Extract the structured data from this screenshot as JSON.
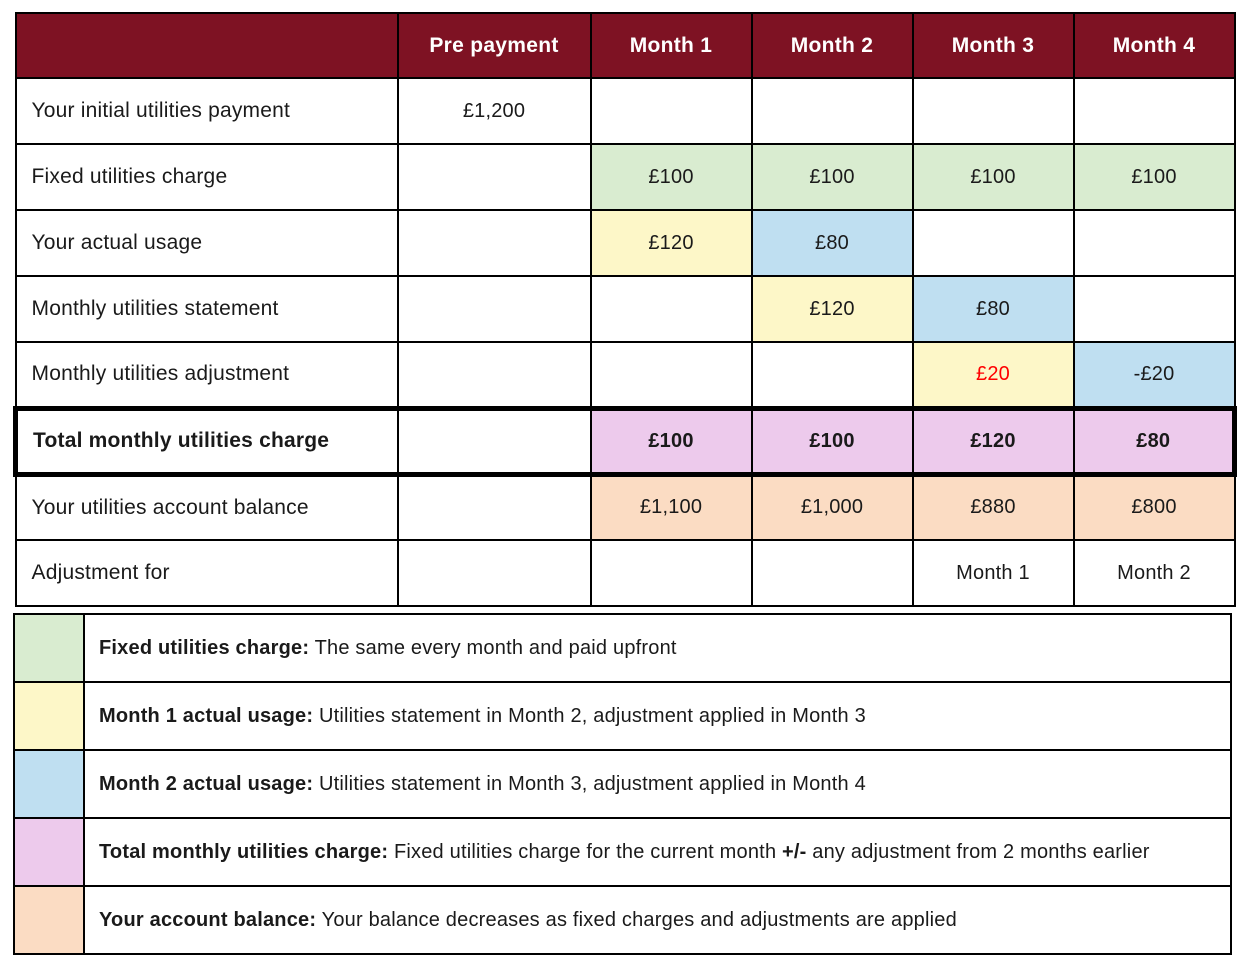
{
  "colors": {
    "header_bg": "#7e1223",
    "header_text": "#ffffff",
    "green": "#d9ecd0",
    "yellow": "#fdf7c8",
    "blue": "#bfdff1",
    "pink": "#edcaec",
    "peach": "#fbdcc3",
    "red": "#ff0000",
    "border": "#000000"
  },
  "table": {
    "columns": [
      "",
      "Pre payment",
      "Month 1",
      "Month 2",
      "Month 3",
      "Month 4"
    ],
    "rows": [
      {
        "label": "Your initial utilities payment",
        "total": false,
        "cells": [
          {
            "text": "£1,200",
            "bg": "",
            "color": ""
          },
          {
            "text": "",
            "bg": "",
            "color": ""
          },
          {
            "text": "",
            "bg": "",
            "color": ""
          },
          {
            "text": "",
            "bg": "",
            "color": ""
          },
          {
            "text": "",
            "bg": "",
            "color": ""
          }
        ]
      },
      {
        "label": "Fixed utilities charge",
        "total": false,
        "cells": [
          {
            "text": "",
            "bg": "",
            "color": ""
          },
          {
            "text": "£100",
            "bg": "green",
            "color": ""
          },
          {
            "text": "£100",
            "bg": "green",
            "color": ""
          },
          {
            "text": "£100",
            "bg": "green",
            "color": ""
          },
          {
            "text": "£100",
            "bg": "green",
            "color": ""
          }
        ]
      },
      {
        "label": "Your actual usage",
        "total": false,
        "cells": [
          {
            "text": "",
            "bg": "",
            "color": ""
          },
          {
            "text": "£120",
            "bg": "yellow",
            "color": ""
          },
          {
            "text": "£80",
            "bg": "blue",
            "color": ""
          },
          {
            "text": "",
            "bg": "",
            "color": ""
          },
          {
            "text": "",
            "bg": "",
            "color": ""
          }
        ]
      },
      {
        "label": "Monthly utilities statement",
        "total": false,
        "cells": [
          {
            "text": "",
            "bg": "",
            "color": ""
          },
          {
            "text": "",
            "bg": "",
            "color": ""
          },
          {
            "text": "£120",
            "bg": "yellow",
            "color": ""
          },
          {
            "text": "£80",
            "bg": "blue",
            "color": ""
          },
          {
            "text": "",
            "bg": "",
            "color": ""
          }
        ]
      },
      {
        "label": "Monthly utilities adjustment",
        "total": false,
        "cells": [
          {
            "text": "",
            "bg": "",
            "color": ""
          },
          {
            "text": "",
            "bg": "",
            "color": ""
          },
          {
            "text": "",
            "bg": "",
            "color": ""
          },
          {
            "text": "£20",
            "bg": "yellow",
            "color": "red"
          },
          {
            "text": "-£20",
            "bg": "blue",
            "color": ""
          }
        ]
      },
      {
        "label": "Total monthly utilities charge",
        "total": true,
        "cells": [
          {
            "text": "",
            "bg": "",
            "color": ""
          },
          {
            "text": "£100",
            "bg": "pink",
            "color": ""
          },
          {
            "text": "£100",
            "bg": "pink",
            "color": ""
          },
          {
            "text": "£120",
            "bg": "pink",
            "color": ""
          },
          {
            "text": "£80",
            "bg": "pink",
            "color": ""
          }
        ]
      },
      {
        "label": "Your utilities account balance",
        "total": false,
        "cells": [
          {
            "text": "",
            "bg": "",
            "color": ""
          },
          {
            "text": "£1,100",
            "bg": "peach",
            "color": ""
          },
          {
            "text": "£1,000",
            "bg": "peach",
            "color": ""
          },
          {
            "text": "£880",
            "bg": "peach",
            "color": ""
          },
          {
            "text": "£800",
            "bg": "peach",
            "color": ""
          }
        ]
      },
      {
        "label": "Adjustment for",
        "total": false,
        "cells": [
          {
            "text": "",
            "bg": "",
            "color": ""
          },
          {
            "text": "",
            "bg": "",
            "color": ""
          },
          {
            "text": "",
            "bg": "",
            "color": ""
          },
          {
            "text": "Month 1",
            "bg": "",
            "color": ""
          },
          {
            "text": "Month 2",
            "bg": "",
            "color": ""
          }
        ]
      }
    ]
  },
  "legend": [
    {
      "bg": "green",
      "title": "Fixed utilities charge:",
      "text_before": " The same every month and paid upfront",
      "bold_inline": "",
      "text_after": ""
    },
    {
      "bg": "yellow",
      "title": "Month 1 actual usage:",
      "text_before": " Utilities statement in Month 2, adjustment applied in Month 3",
      "bold_inline": "",
      "text_after": ""
    },
    {
      "bg": "blue",
      "title": "Month 2 actual usage:",
      "text_before": " Utilities statement in Month 3, adjustment applied in Month 4",
      "bold_inline": "",
      "text_after": ""
    },
    {
      "bg": "pink",
      "title": "Total monthly utilities charge:",
      "text_before": " Fixed utilities charge for the current month ",
      "bold_inline": "+/-",
      "text_after": " any adjustment from 2 months earlier"
    },
    {
      "bg": "peach",
      "title": "Your account balance:",
      "text_before": " Your balance decreases as fixed charges and adjustments are applied",
      "bold_inline": "",
      "text_after": ""
    }
  ]
}
